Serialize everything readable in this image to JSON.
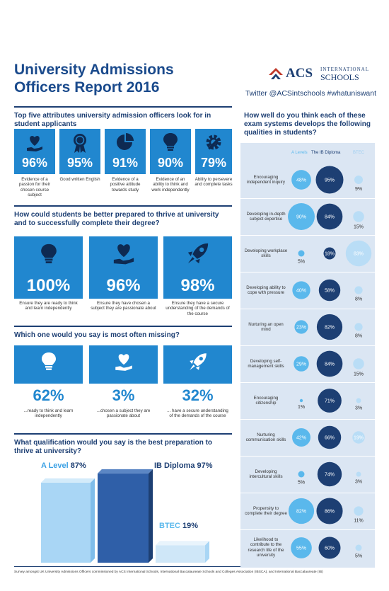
{
  "header": {
    "title_line1": "University Admissions",
    "title_line2": "Officers Report 2016",
    "logo_acs": "ACS",
    "logo_international": "INTERNATIONAL",
    "logo_schools": "SCHOOLS",
    "social": "Twitter @ACSintschools  #whatuniswant"
  },
  "section1": {
    "heading": "Top five attributes university admission officers look for in student applicants",
    "items": [
      {
        "value": "96%",
        "icon": "heart-hand-icon",
        "caption": "Evidence of a passion for their chosen course subject"
      },
      {
        "value": "95%",
        "icon": "award-ribbon-icon",
        "caption": "Good written English"
      },
      {
        "value": "91%",
        "icon": "pie-chart-icon",
        "caption": "Evidence of a positive attitude towards study"
      },
      {
        "value": "90%",
        "icon": "lightbulb-icon",
        "caption": "Evidence of an ability to think and work independently"
      },
      {
        "value": "79%",
        "icon": "gear-wrench-icon",
        "caption": "Ability to persevere and complete tasks"
      }
    ]
  },
  "section2": {
    "heading": "How could students be better prepared to thrive at university and to successfully complete their degree?",
    "items": [
      {
        "value": "100%",
        "icon": "lightbulb-icon",
        "caption": "Ensure they are ready to think and learn independently"
      },
      {
        "value": "96%",
        "icon": "heart-hand-icon",
        "caption": "Ensure they have chosen a subject they are passionate about"
      },
      {
        "value": "98%",
        "icon": "rocket-icon",
        "caption": "Ensure they have a secure understanding of the demands of the course"
      }
    ]
  },
  "section3": {
    "heading": "Which one would you say is most often missing?",
    "items": [
      {
        "value": "62%",
        "icon": "lightbulb-icon",
        "caption": "...ready to think and learn independently"
      },
      {
        "value": "3%",
        "icon": "heart-hand-icon",
        "caption": "...chosen a subject they are passionate about"
      },
      {
        "value": "32%",
        "icon": "rocket-icon",
        "caption": "... have a secure understanding of the demands of the course"
      }
    ]
  },
  "section4": {
    "heading": "What qualification would you say is the best preparation to thrive at university?"
  },
  "panel": {
    "heading": "How well do you think each of these exam systems develops the following qualities in students?"
  },
  "footer": "Survey amongst UK University Admissions Officers commissioned by ACS International Schools, International Baccalaureate Schools and Colleges Association (IBSCA), and International Baccalaureate (IB)",
  "colors": {
    "navy": "#1d3f73",
    "blue": "#2187cf",
    "light_blue": "#5ab8ec",
    "pale_blue": "#b9ddf6",
    "panel_bg": "#dbe6f3"
  },
  "chart_data": [
    {
      "type": "bar",
      "categories": [
        "A Level",
        "IB Diploma",
        "BTEC"
      ],
      "values": [
        87,
        97,
        19
      ],
      "labels": [
        "87%",
        "97%",
        "19%"
      ],
      "ylim": [
        0,
        100
      ]
    },
    {
      "type": "scatter",
      "legend": [
        "A Levels",
        "The IB Diploma",
        "BTEC"
      ],
      "categories": [
        "Encouraging independent inquiry",
        "Developing in-depth subject expertise",
        "Developing workplace skills",
        "Developing ability to cope with pressure",
        "Nurturing an open mind",
        "Developing self-management skills",
        "Encouraging citizenship",
        "Nurturing communication skills",
        "Developing intercultural skills",
        "Propensity to complete their degree",
        "Likelihood to contribute to the research life of the university"
      ],
      "series": [
        {
          "name": "A Levels",
          "values": [
            48,
            90,
            5,
            40,
            23,
            29,
            1,
            42,
            5,
            82,
            55
          ]
        },
        {
          "name": "The IB Diploma",
          "values": [
            95,
            84,
            18,
            58,
            82,
            84,
            71,
            66,
            74,
            86,
            60
          ]
        },
        {
          "name": "BTEC",
          "values": [
            9,
            15,
            83,
            8,
            8,
            15,
            3,
            19,
            3,
            11,
            5
          ]
        }
      ]
    }
  ]
}
